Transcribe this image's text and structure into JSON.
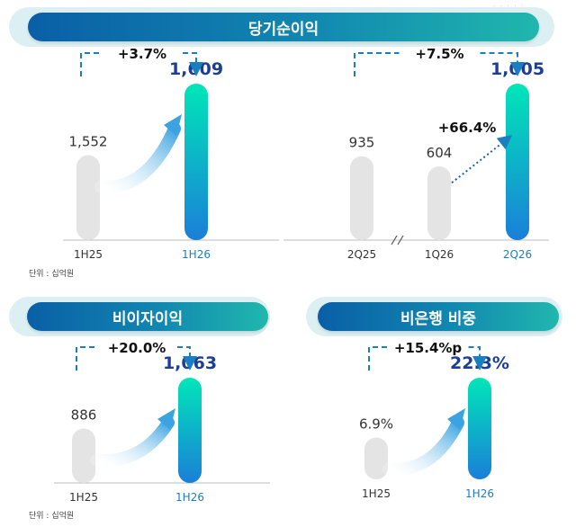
{
  "panels": {
    "net_income": {
      "title": "당기순이익",
      "unit": "단위 : 십억원"
    },
    "non_interest": {
      "title": "비이자이익",
      "unit": "단위 : 십억원"
    },
    "non_bank": {
      "title": "비은행 비중"
    }
  },
  "colors": {
    "accent_start": "#00e6b8",
    "accent_end": "#1a7fd8",
    "grey_bar": "#e4e4e4",
    "value_blue": "#1c3f94",
    "label_blue": "#1a7fc1"
  },
  "chart_data": [
    {
      "type": "bar",
      "title": "당기순이익",
      "categories": [
        "1H25",
        "1H26"
      ],
      "values": [
        1552,
        1609
      ],
      "value_labels": [
        "1,552",
        "1,609"
      ],
      "change_label": "+3.7%",
      "ylim": [
        0,
        1700
      ]
    },
    {
      "type": "bar",
      "title": "당기순이익",
      "categories": [
        "2Q25",
        "1Q26",
        "2Q26"
      ],
      "values": [
        935,
        604,
        1005
      ],
      "value_labels": [
        "935",
        "604",
        "1,005"
      ],
      "change_label": "+7.5%",
      "qoq_label": "+66.4%",
      "ylim": [
        0,
        1100
      ]
    },
    {
      "type": "bar",
      "title": "비이자이익",
      "categories": [
        "1H25",
        "1H26"
      ],
      "values": [
        886,
        1063
      ],
      "value_labels": [
        "886",
        "1,063"
      ],
      "change_label": "+20.0%",
      "ylim": [
        0,
        1200
      ]
    },
    {
      "type": "bar",
      "title": "비은행 비중",
      "categories": [
        "1H25",
        "1H26"
      ],
      "values": [
        6.9,
        22.3
      ],
      "value_labels": [
        "6.9%",
        "22.3%"
      ],
      "change_label": "+15.4%p",
      "ylim": [
        0,
        25
      ]
    }
  ]
}
